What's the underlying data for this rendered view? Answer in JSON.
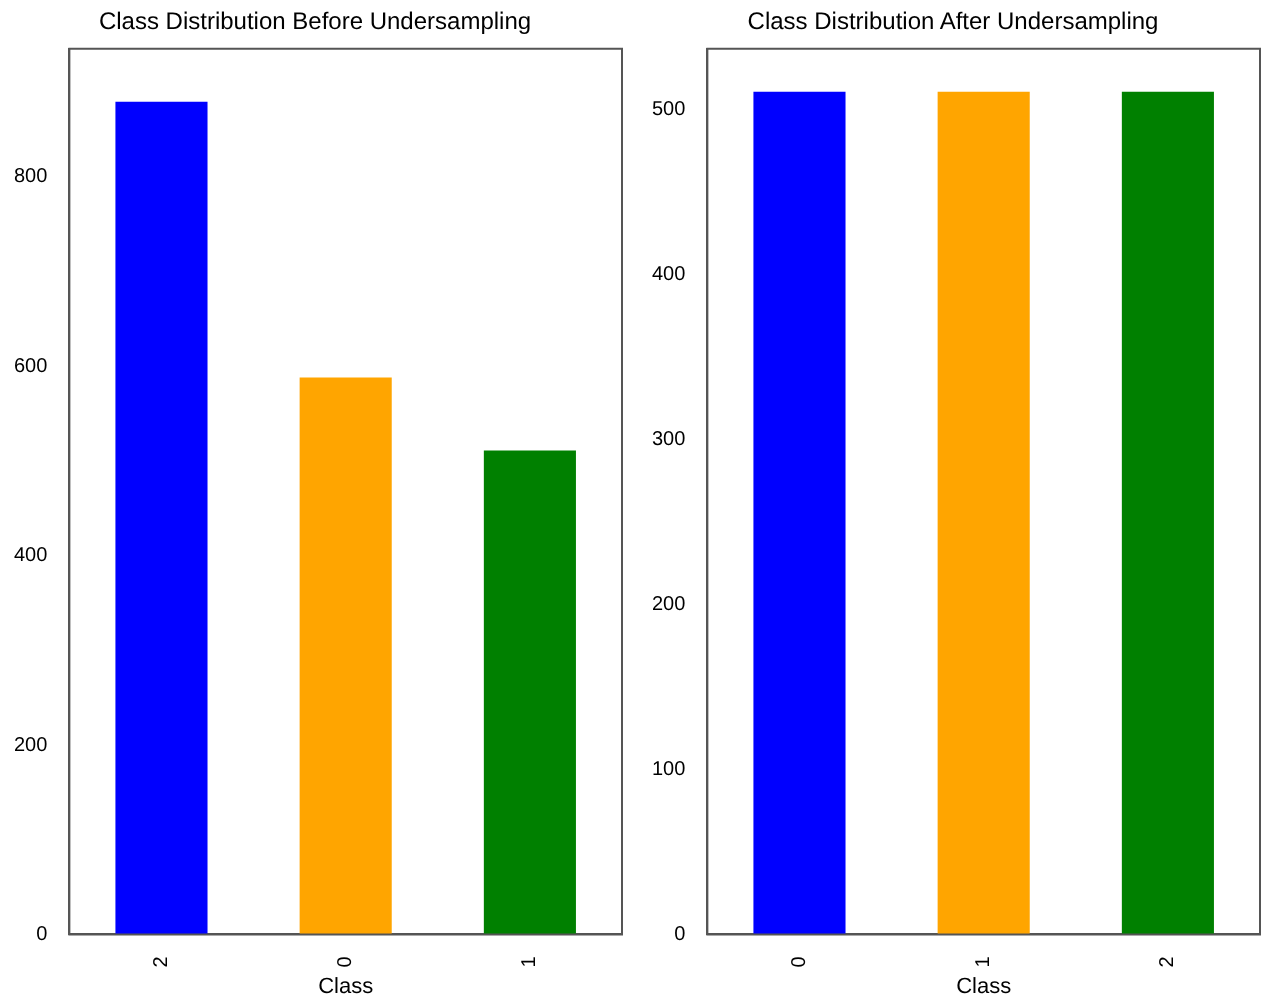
{
  "chart_data": [
    {
      "type": "bar",
      "title": "Class Distribution Before Undersampling",
      "xlabel": "Class",
      "categories": [
        "2",
        "0",
        "1"
      ],
      "values": [
        879,
        588,
        511
      ],
      "colors": [
        "#0000ff",
        "#ffa500",
        "#008000"
      ],
      "ylim": [
        0,
        935
      ],
      "yticks": [
        0,
        200,
        400,
        600,
        800
      ],
      "grid": false,
      "legend": false
    },
    {
      "type": "bar",
      "title": "Class Distribution After Undersampling",
      "xlabel": "Class",
      "categories": [
        "0",
        "1",
        "2"
      ],
      "values": [
        511,
        511,
        511
      ],
      "colors": [
        "#0000ff",
        "#ffa500",
        "#008000"
      ],
      "ylim": [
        0,
        537
      ],
      "yticks": [
        0,
        100,
        200,
        300,
        400,
        500
      ],
      "grid": false,
      "legend": false
    }
  ]
}
